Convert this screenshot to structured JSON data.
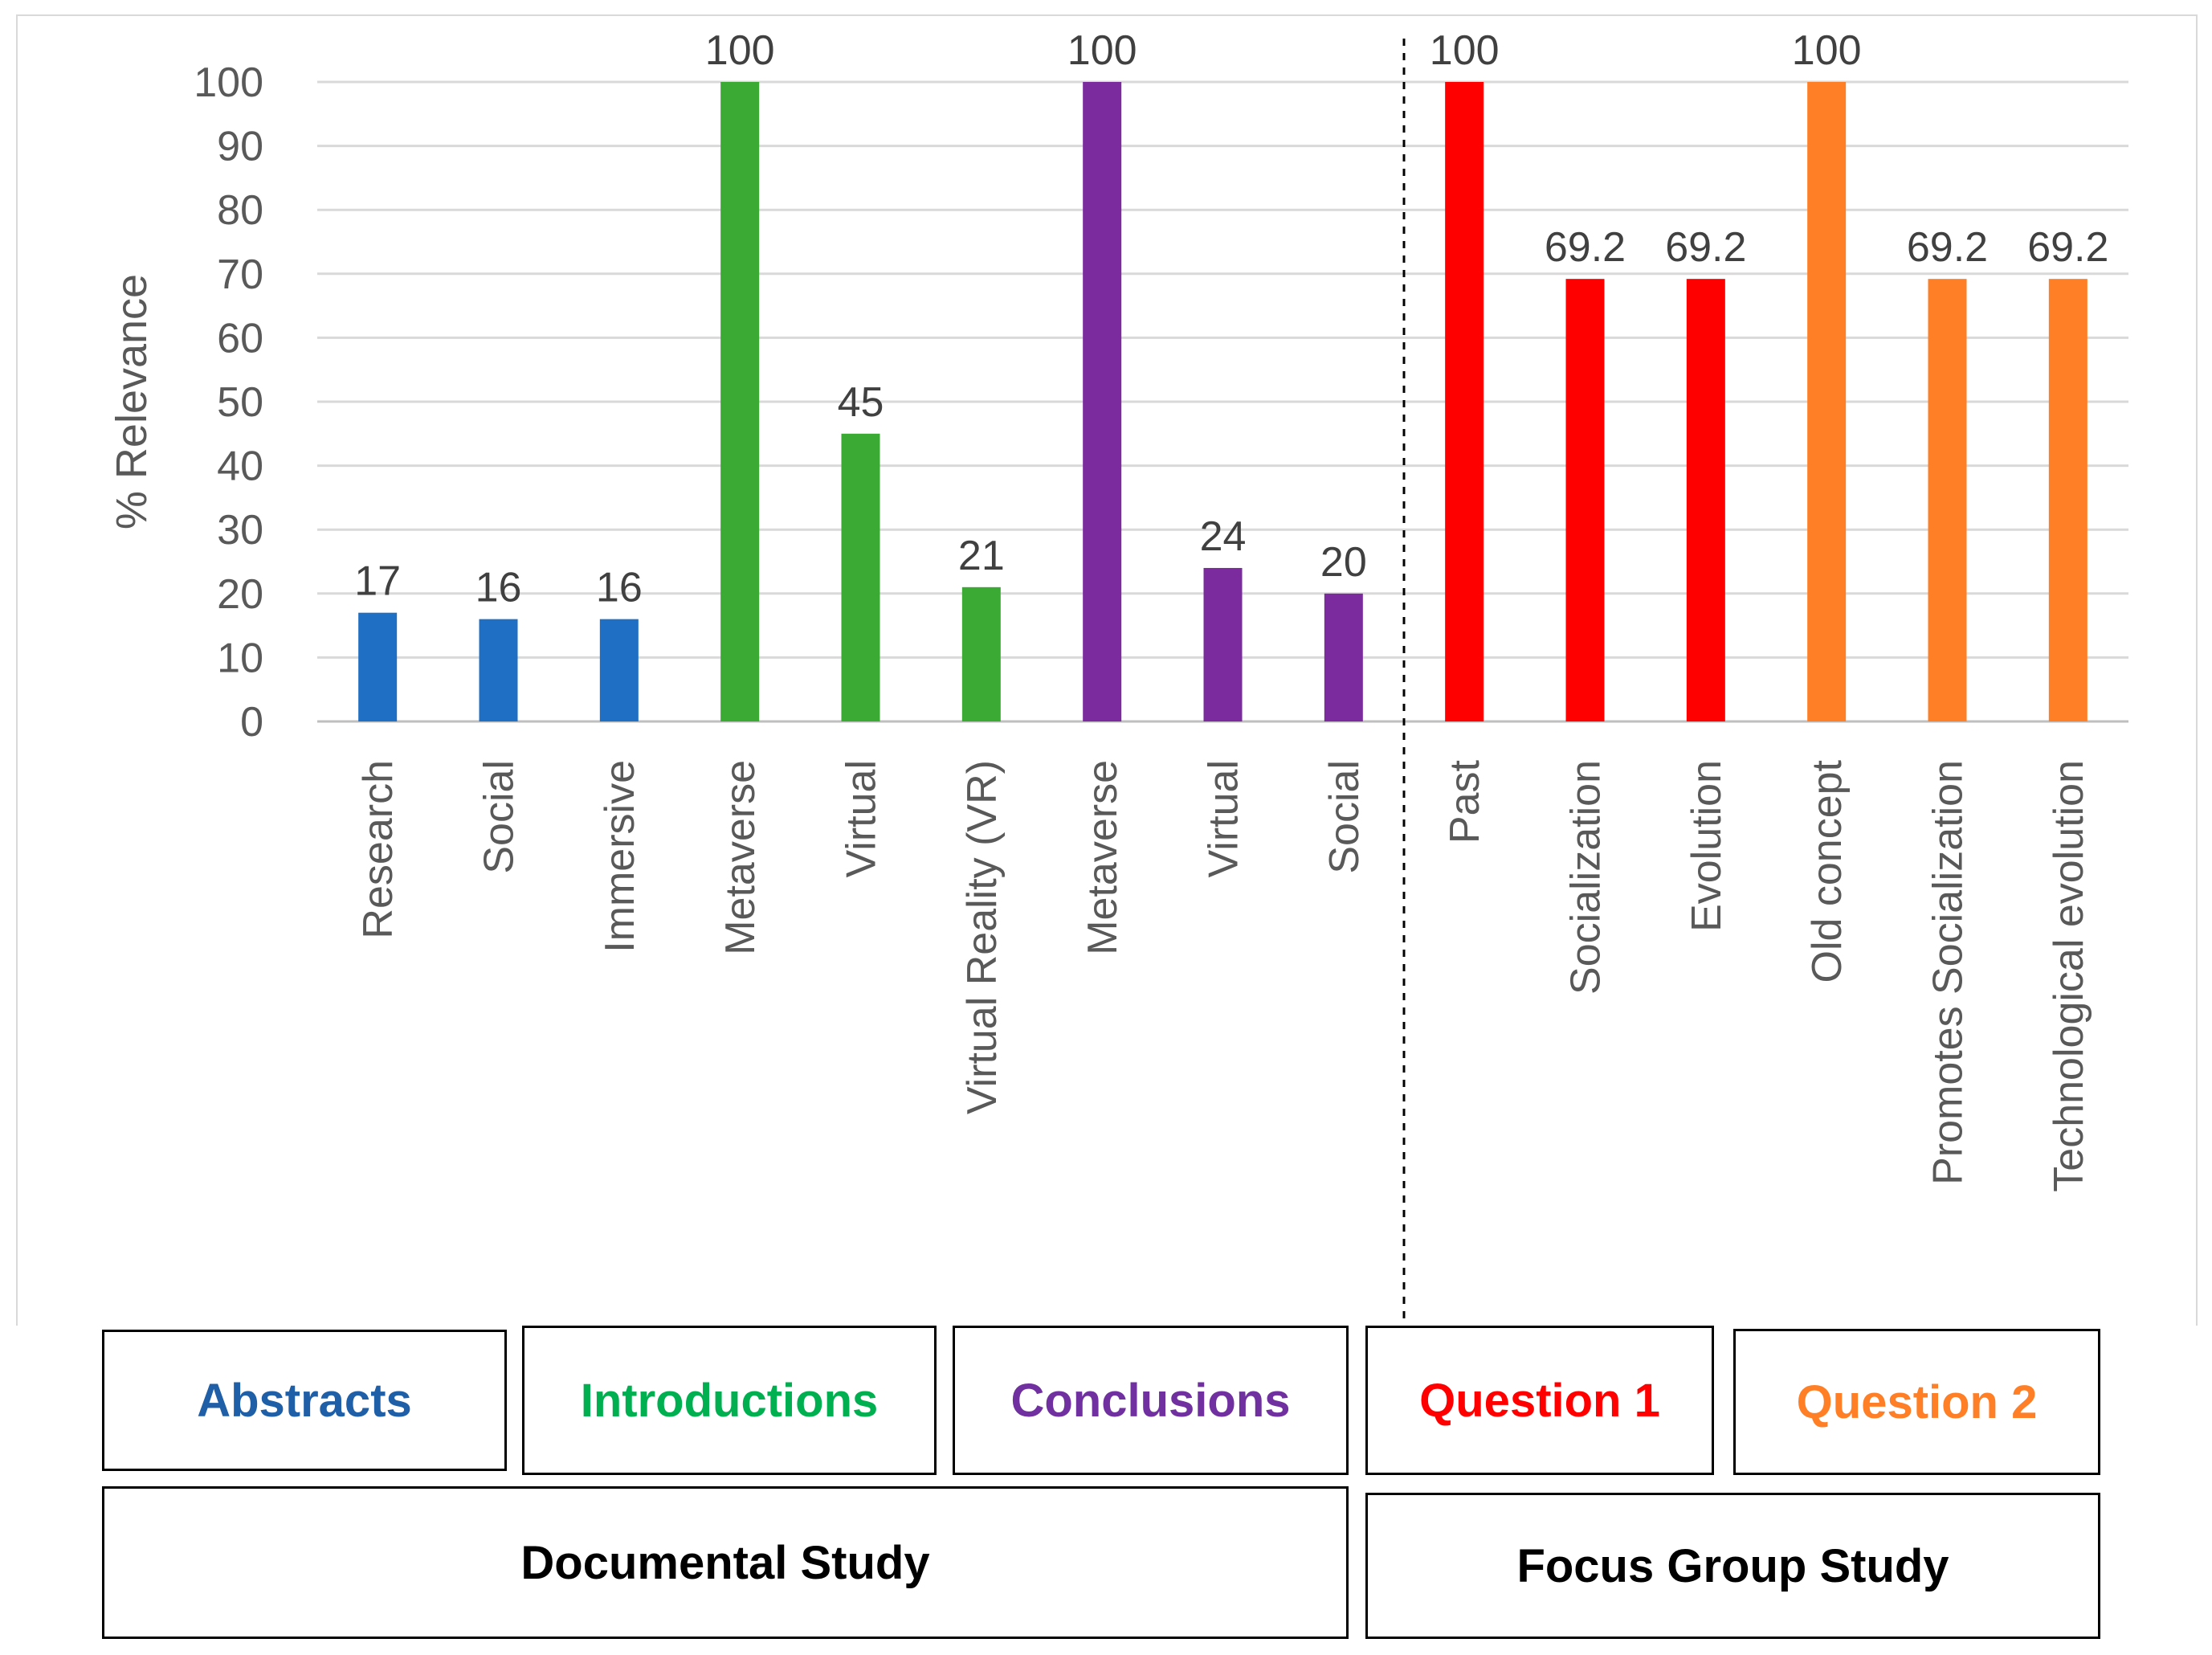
{
  "chart_data": {
    "type": "bar",
    "title": "",
    "xlabel": "",
    "ylabel": "% Relevance",
    "ylim": [
      0,
      100
    ],
    "yticks": [
      0,
      10,
      20,
      30,
      40,
      50,
      60,
      70,
      80,
      90,
      100
    ],
    "grid": true,
    "legend": "none",
    "bars": [
      {
        "label": "Research",
        "value": 17,
        "value_label": "17",
        "group": "Abstracts"
      },
      {
        "label": "Social",
        "value": 16,
        "value_label": "16",
        "group": "Abstracts"
      },
      {
        "label": "Immersive",
        "value": 16,
        "value_label": "16",
        "group": "Abstracts"
      },
      {
        "label": "Metaverse",
        "value": 100,
        "value_label": "100",
        "group": "Introductions"
      },
      {
        "label": "Virtual",
        "value": 45,
        "value_label": "45",
        "group": "Introductions"
      },
      {
        "label": "Virtual Reality (VR)",
        "value": 21,
        "value_label": "21",
        "group": "Introductions"
      },
      {
        "label": "Metaverse",
        "value": 100,
        "value_label": "100",
        "group": "Conclusions"
      },
      {
        "label": "Virtual",
        "value": 24,
        "value_label": "24",
        "group": "Conclusions"
      },
      {
        "label": "Social",
        "value": 20,
        "value_label": "20",
        "group": "Conclusions"
      },
      {
        "label": "Past",
        "value": 100,
        "value_label": "100",
        "group": "Question 1"
      },
      {
        "label": "Socialization",
        "value": 69.2,
        "value_label": "69.2",
        "group": "Question 1"
      },
      {
        "label": "Evolution",
        "value": 69.2,
        "value_label": "69.2",
        "group": "Question 1"
      },
      {
        "label": "Old concept",
        "value": 100,
        "value_label": "100",
        "group": "Question 2"
      },
      {
        "label": "Promotes Socialization",
        "value": 69.2,
        "value_label": "69.2",
        "group": "Question 2"
      },
      {
        "label": "Technological evolution",
        "value": 69.2,
        "value_label": "69.2",
        "group": "Question 2"
      }
    ],
    "groups": [
      {
        "name": "Abstracts",
        "color": "#1f6fc5"
      },
      {
        "name": "Introductions",
        "color": "#3aaa35"
      },
      {
        "name": "Conclusions",
        "color": "#7b2b9e"
      },
      {
        "name": "Question 1",
        "color": "#ff0000"
      },
      {
        "name": "Question 2",
        "color": "#ff7f27"
      }
    ],
    "group_label_colors": {
      "Abstracts": "#1f5fa8",
      "Introductions": "#00b050",
      "Conclusions": "#7030a0",
      "Question 1": "#ff0000",
      "Question 2": "#ff7f27"
    },
    "studies": [
      {
        "name": "Documental Study",
        "groups": [
          "Abstracts",
          "Introductions",
          "Conclusions"
        ]
      },
      {
        "name": "Focus Group Study",
        "groups": [
          "Question 1",
          "Question 2"
        ]
      }
    ],
    "divider_after_bar": 9
  }
}
